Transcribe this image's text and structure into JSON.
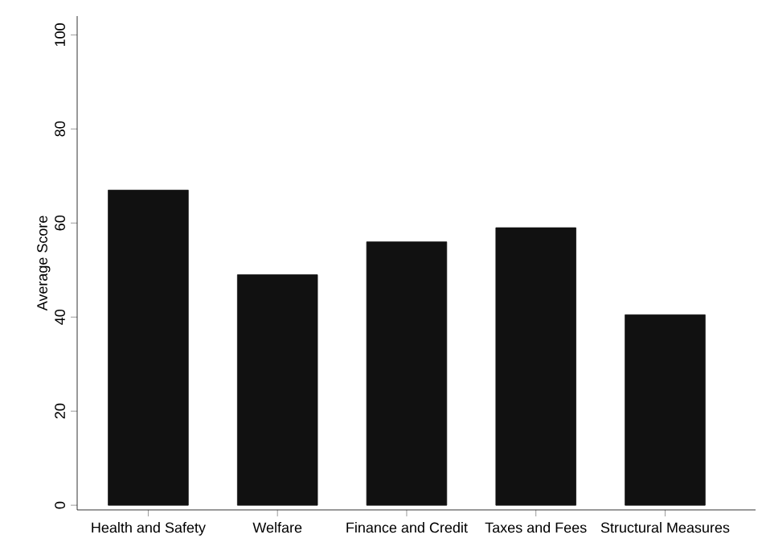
{
  "chart_data": {
    "type": "bar",
    "ylabel": "Average Score",
    "categories": [
      "Health and Safety",
      "Welfare",
      "Finance and Credit",
      "Taxes and Fees",
      "Structural Measures"
    ],
    "values": [
      67,
      49,
      56,
      59,
      40.5
    ],
    "color": "#111111",
    "ylim": [
      -1,
      104
    ],
    "yticks": [
      0,
      20,
      40,
      60,
      80,
      100
    ],
    "grid": false
  }
}
